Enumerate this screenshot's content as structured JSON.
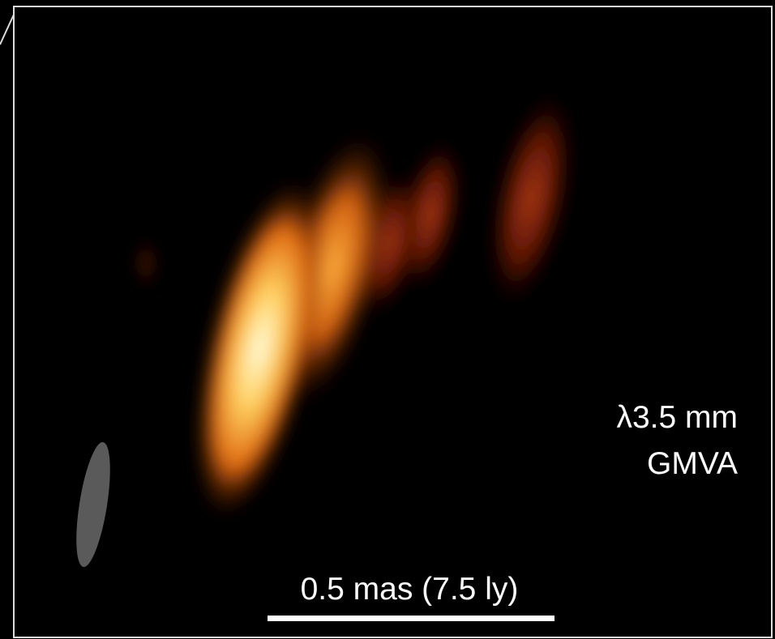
{
  "image": {
    "labels": {
      "wavelength": "λ3.5 mm",
      "array": "GMVA"
    },
    "scale_bar": {
      "label": "0.5 mas (7.5 ly)"
    }
  }
}
